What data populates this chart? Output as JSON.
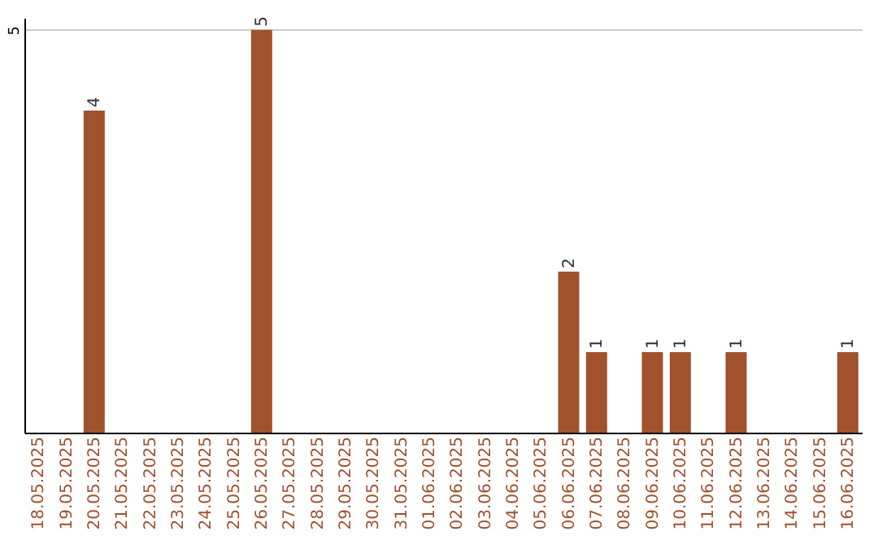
{
  "chart_data": {
    "type": "bar",
    "categories": [
      "18.05.2025",
      "19.05.2025",
      "20.05.2025",
      "21.05.2025",
      "22.05.2025",
      "23.05.2025",
      "24.05.2025",
      "25.05.2025",
      "26.05.2025",
      "27.05.2025",
      "28.05.2025",
      "29.05.2025",
      "30.05.2025",
      "31.05.2025",
      "01.06.2025",
      "02.06.2025",
      "03.06.2025",
      "04.06.2025",
      "05.06.2025",
      "06.06.2025",
      "07.06.2025",
      "08.06.2025",
      "09.06.2025",
      "10.06.2025",
      "11.06.2025",
      "12.06.2025",
      "13.06.2025",
      "14.06.2025",
      "15.06.2025",
      "16.06.2025"
    ],
    "values": [
      null,
      null,
      4,
      null,
      null,
      null,
      null,
      null,
      5,
      null,
      null,
      null,
      null,
      null,
      null,
      null,
      null,
      null,
      null,
      2,
      1,
      null,
      1,
      1,
      null,
      1,
      null,
      null,
      null,
      1
    ],
    "color": "#a0522d",
    "ylim": [
      0,
      5.15
    ],
    "yticks": [
      5
    ],
    "grid": "y",
    "data_labels": true
  }
}
